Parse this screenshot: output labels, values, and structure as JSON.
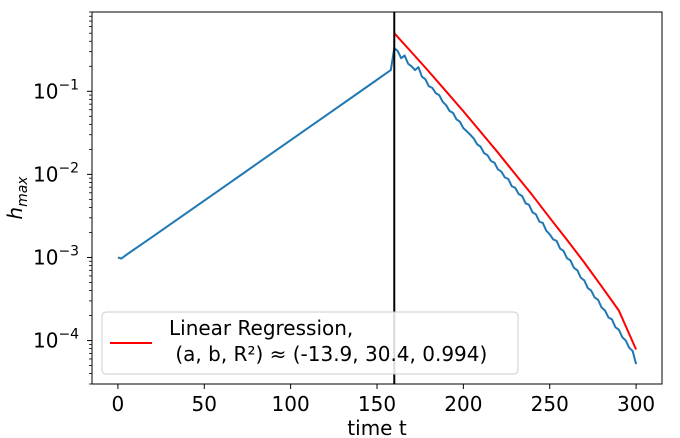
{
  "chart_data": {
    "type": "line",
    "title": "",
    "xlabel": "time t",
    "ylabel_base": "h",
    "ylabel_sub": "max",
    "yscale": "log",
    "xlim": [
      -15,
      315
    ],
    "ylim": [
      3e-05,
      0.9
    ],
    "xticks": [
      {
        "value": 0,
        "label": "0"
      },
      {
        "value": 50,
        "label": "50"
      },
      {
        "value": 100,
        "label": "100"
      },
      {
        "value": 150,
        "label": "150"
      },
      {
        "value": 200,
        "label": "200"
      },
      {
        "value": 250,
        "label": "250"
      },
      {
        "value": 300,
        "label": "300"
      }
    ],
    "yticks": [
      {
        "value": 0.1,
        "base": "10",
        "exp": "−1"
      },
      {
        "value": 0.01,
        "base": "10",
        "exp": "−2"
      },
      {
        "value": 0.001,
        "base": "10",
        "exp": "−3"
      },
      {
        "value": 0.0001,
        "base": "10",
        "exp": "−4"
      }
    ],
    "vertical_line": {
      "x": 160,
      "color": "#000000"
    },
    "series": [
      {
        "name": "",
        "color": "#1f77b4",
        "points": [
          [
            0,
            0.001
          ],
          [
            2,
            0.00097
          ],
          [
            5,
            0.00108
          ],
          [
            20,
            0.00177
          ],
          [
            40,
            0.00346
          ],
          [
            60,
            0.00676
          ],
          [
            80,
            0.0132
          ],
          [
            100,
            0.0258
          ],
          [
            120,
            0.0504
          ],
          [
            140,
            0.0984
          ],
          [
            158,
            0.18
          ],
          [
            160,
            0.33
          ],
          [
            162,
            0.305
          ],
          [
            164,
            0.25
          ],
          [
            166,
            0.27
          ],
          [
            168,
            0.215
          ],
          [
            170,
            0.2
          ],
          [
            172,
            0.18
          ],
          [
            174,
            0.195
          ],
          [
            176,
            0.15
          ],
          [
            178,
            0.14
          ],
          [
            180,
            0.115
          ],
          [
            182,
            0.11
          ],
          [
            184,
            0.095
          ],
          [
            186,
            0.09
          ],
          [
            188,
            0.075
          ],
          [
            190,
            0.068
          ],
          [
            192,
            0.058
          ],
          [
            194,
            0.055
          ],
          [
            196,
            0.046
          ],
          [
            198,
            0.043
          ],
          [
            200,
            0.036
          ],
          [
            202,
            0.033
          ],
          [
            204,
            0.03
          ],
          [
            206,
            0.027
          ],
          [
            208,
            0.023
          ],
          [
            210,
            0.0215
          ],
          [
            212,
            0.018
          ],
          [
            214,
            0.017
          ],
          [
            216,
            0.0145
          ],
          [
            218,
            0.0138
          ],
          [
            220,
            0.0115
          ],
          [
            222,
            0.0108
          ],
          [
            224,
            0.0092
          ],
          [
            226,
            0.0088
          ],
          [
            228,
            0.0072
          ],
          [
            230,
            0.0069
          ],
          [
            232,
            0.0058
          ],
          [
            234,
            0.0055
          ],
          [
            236,
            0.0045
          ],
          [
            238,
            0.0043
          ],
          [
            240,
            0.0035
          ],
          [
            242,
            0.0033
          ],
          [
            244,
            0.0027
          ],
          [
            246,
            0.0026
          ],
          [
            248,
            0.0021
          ],
          [
            250,
            0.0019
          ],
          [
            252,
            0.00165
          ],
          [
            254,
            0.00158
          ],
          [
            256,
            0.00128
          ],
          [
            258,
            0.0012
          ],
          [
            260,
            0.00098
          ],
          [
            262,
            0.00092
          ],
          [
            264,
            0.00075
          ],
          [
            266,
            0.0007
          ],
          [
            268,
            0.00057
          ],
          [
            270,
            0.00053
          ],
          [
            272,
            0.00043
          ],
          [
            274,
            0.0004
          ],
          [
            276,
            0.00033
          ],
          [
            278,
            0.00031
          ],
          [
            280,
            0.00025
          ],
          [
            282,
            0.00023
          ],
          [
            284,
            0.00019
          ],
          [
            286,
            0.00018
          ],
          [
            288,
            0.000145
          ],
          [
            290,
            0.000135
          ],
          [
            292,
            0.00011
          ],
          [
            294,
            0.0001
          ],
          [
            296,
            8.2e-05
          ],
          [
            298,
            7.5e-05
          ],
          [
            300,
            5.2e-05
          ]
        ]
      },
      {
        "name": "Linear Regression,",
        "color": "#ff0000",
        "points": [
          [
            160,
            0.5
          ],
          [
            170,
            0.295
          ],
          [
            180,
            0.173
          ],
          [
            190,
            0.1
          ],
          [
            200,
            0.0575
          ],
          [
            210,
            0.0325
          ],
          [
            220,
            0.0183
          ],
          [
            230,
            0.0101
          ],
          [
            240,
            0.0056
          ],
          [
            250,
            0.003
          ],
          [
            260,
            0.00163
          ],
          [
            270,
            0.00087
          ],
          [
            280,
            0.00045
          ],
          [
            290,
            0.00023
          ],
          [
            300,
            7.8e-05
          ]
        ]
      }
    ],
    "legend": {
      "position": "lower-left",
      "entries": [
        {
          "line1": "Linear Regression,",
          "line2": " (a, b, R²) ≈ (-13.9, 30.4, 0.994)",
          "color": "#ff0000"
        }
      ]
    }
  }
}
